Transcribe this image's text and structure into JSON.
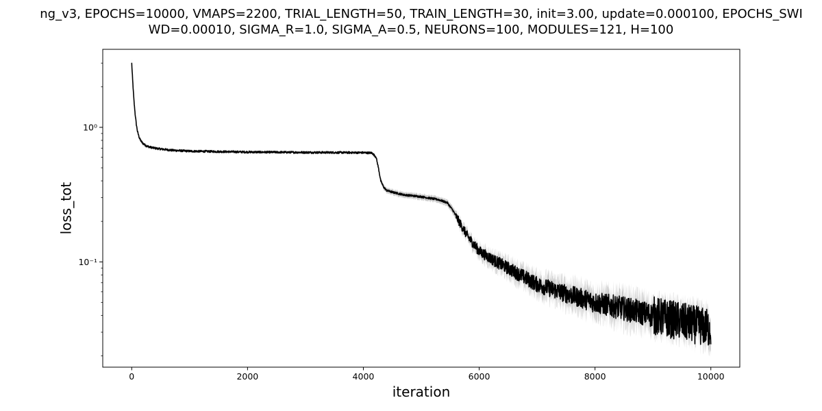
{
  "title": {
    "line1": "ng_v3, EPOCHS=10000, VMAPS=2200, TRIAL_LENGTH=50, TRAIN_LENGTH=30, init=3.00, update=0.000100, EPOCHS_SWI",
    "line2": "WD=0.00010, SIGMA_R=1.0, SIGMA_A=0.5, NEURONS=100, MODULES=121, H=100"
  },
  "chart_data": {
    "type": "line",
    "xlabel": "iteration",
    "ylabel": "loss_tot",
    "xlim": [
      -500,
      10500
    ],
    "ylim": [
      0.0165,
      3.8
    ],
    "yscale": "log",
    "x_ticks": [
      0,
      2000,
      4000,
      6000,
      8000,
      10000
    ],
    "x_tick_labels": [
      "0",
      "2000",
      "4000",
      "6000",
      "8000",
      "10000"
    ],
    "y_ticks": [
      0.1,
      1.0
    ],
    "y_tick_labels": [
      "10⁻¹",
      "10⁰"
    ],
    "grid": false,
    "legend": "none",
    "colors": {
      "line": "#000000",
      "band": "#c8c8c8"
    },
    "series": [
      {
        "x": [
          0,
          20,
          40,
          60,
          80,
          100,
          130,
          160,
          200,
          250,
          300,
          400,
          500,
          700,
          1000,
          1500,
          2000,
          2500,
          3000,
          3500,
          4000,
          4150,
          4220,
          4260,
          4300,
          4350,
          4400,
          4500,
          4700,
          5000,
          5300,
          5450,
          5550,
          5650,
          5800,
          6000,
          6300,
          6600,
          7000,
          7500,
          8000,
          8500,
          9000,
          9500,
          10000
        ],
        "y": [
          3.0,
          2.1,
          1.55,
          1.25,
          1.05,
          0.93,
          0.84,
          0.79,
          0.755,
          0.73,
          0.715,
          0.7,
          0.69,
          0.675,
          0.665,
          0.66,
          0.655,
          0.653,
          0.651,
          0.65,
          0.648,
          0.645,
          0.6,
          0.5,
          0.4,
          0.36,
          0.34,
          0.33,
          0.315,
          0.305,
          0.29,
          0.275,
          0.24,
          0.2,
          0.155,
          0.12,
          0.1,
          0.085,
          0.068,
          0.058,
          0.05,
          0.045,
          0.04,
          0.036,
          0.032
        ],
        "band_low": [
          2.7,
          1.9,
          1.45,
          1.18,
          1.0,
          0.9,
          0.81,
          0.765,
          0.735,
          0.71,
          0.7,
          0.685,
          0.675,
          0.66,
          0.652,
          0.647,
          0.643,
          0.641,
          0.64,
          0.639,
          0.637,
          0.633,
          0.58,
          0.48,
          0.385,
          0.345,
          0.325,
          0.315,
          0.3,
          0.29,
          0.275,
          0.26,
          0.225,
          0.185,
          0.142,
          0.108,
          0.088,
          0.074,
          0.058,
          0.048,
          0.041,
          0.036,
          0.032,
          0.028,
          0.024
        ],
        "band_high": [
          3.2,
          2.3,
          1.65,
          1.32,
          1.1,
          0.96,
          0.87,
          0.815,
          0.775,
          0.75,
          0.73,
          0.715,
          0.705,
          0.69,
          0.68,
          0.673,
          0.668,
          0.666,
          0.663,
          0.662,
          0.66,
          0.657,
          0.62,
          0.52,
          0.415,
          0.375,
          0.355,
          0.345,
          0.33,
          0.32,
          0.305,
          0.29,
          0.255,
          0.215,
          0.168,
          0.132,
          0.112,
          0.097,
          0.08,
          0.07,
          0.061,
          0.056,
          0.05,
          0.046,
          0.042
        ]
      }
    ]
  }
}
